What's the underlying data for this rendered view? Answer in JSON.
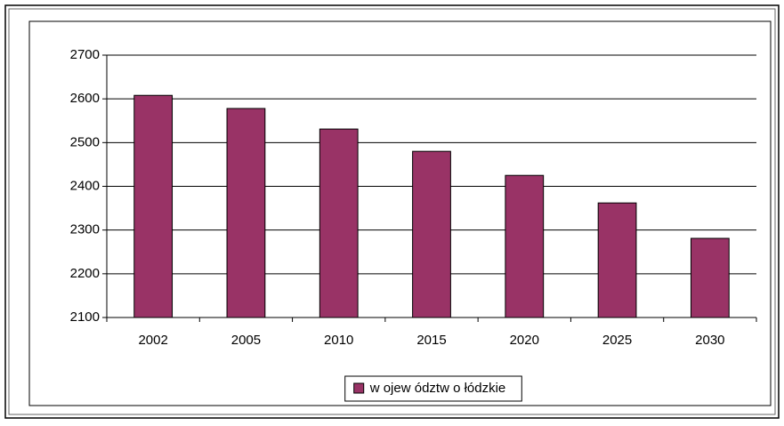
{
  "chart_data": {
    "type": "bar",
    "categories": [
      "2002",
      "2005",
      "2010",
      "2015",
      "2020",
      "2025",
      "2030"
    ],
    "series": [
      {
        "name": "w ojew ództw o łódzkie",
        "color": "#993366",
        "values": [
          2608,
          2578,
          2531,
          2480,
          2425,
          2362,
          2281
        ]
      }
    ],
    "ylim": [
      2100,
      2700
    ],
    "yticks": [
      2100,
      2200,
      2300,
      2400,
      2500,
      2600,
      2700
    ],
    "grid": true,
    "legend": "bottom"
  }
}
